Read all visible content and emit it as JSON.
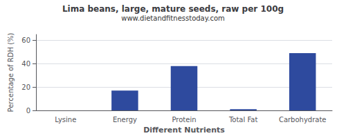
{
  "chart_data": {
    "type": "bar",
    "title": "Lima beans, large, mature seeds, raw per 100g",
    "subtitle": "www.dietandfitnesstoday.com",
    "xlabel": "Different Nutrients",
    "ylabel": "Percentage of RDH (%)",
    "categories": [
      "Lysine",
      "Energy",
      "Protein",
      "Total Fat",
      "Carbohydrate"
    ],
    "values": [
      0,
      17,
      38,
      1,
      49
    ],
    "color": "#2e4a9e",
    "ylim": [
      0,
      65
    ],
    "yticks": [
      0,
      20,
      40,
      60
    ],
    "grid": true
  }
}
